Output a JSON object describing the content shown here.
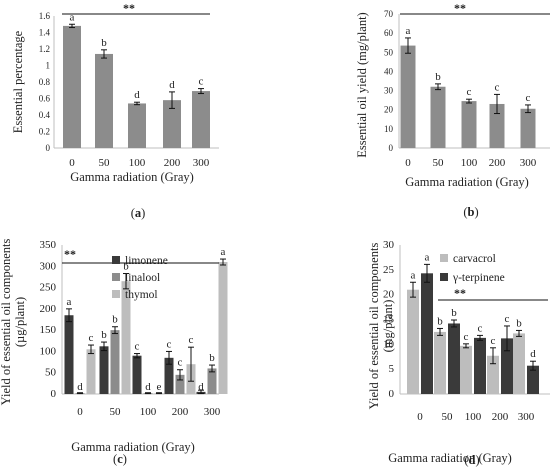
{
  "colors": {
    "gray": "#8c8c8c",
    "dark": "#3a3a3a",
    "light": "#bdbdbd",
    "axis": "#bfbfbf",
    "ink": "#222222"
  },
  "chart_data": [
    {
      "id": "a",
      "panel_label": "(a)",
      "panel_letter": "a",
      "type": "bar",
      "xlabel": "Gamma radiation (Gray)",
      "ylabel": "Essential percentage",
      "categories": [
        "0",
        "50",
        "100",
        "200",
        "300"
      ],
      "ylim": [
        0,
        1.6
      ],
      "yticks": [
        0,
        0.2,
        0.4,
        0.6,
        0.8,
        1.0,
        1.2,
        1.4,
        1.6
      ],
      "ytick_labels": [
        "0",
        "0.2",
        "0.4",
        "0.6",
        "0.8",
        "1",
        "1.2",
        "1.4",
        "1.6"
      ],
      "series": [
        {
          "color": "gray",
          "values": [
            1.48,
            1.14,
            0.54,
            0.58,
            0.69
          ],
          "errors": [
            0.02,
            0.05,
            0.015,
            0.1,
            0.03
          ],
          "letters": [
            "a",
            "b",
            "d",
            "d",
            "c"
          ]
        }
      ],
      "significance": "**"
    },
    {
      "id": "b",
      "panel_label": "(b)",
      "panel_letter": "b",
      "type": "bar",
      "xlabel": "Gamma radiation (Gray)",
      "ylabel": "Essential oil yield (mg/plant)",
      "categories": [
        "0",
        "50",
        "100",
        "200",
        "300"
      ],
      "ylim": [
        0,
        70
      ],
      "yticks": [
        0,
        10,
        20,
        30,
        40,
        50,
        60,
        70
      ],
      "ytick_labels": [
        "0",
        "10",
        "20",
        "30",
        "40",
        "50",
        "60",
        "70"
      ],
      "series": [
        {
          "color": "gray",
          "values": [
            53.5,
            32,
            24.5,
            23,
            20.5
          ],
          "errors": [
            4,
            1.5,
            1,
            5,
            2
          ],
          "letters": [
            "a",
            "b",
            "c",
            "c",
            "c"
          ]
        }
      ],
      "significance": "**"
    },
    {
      "id": "c",
      "panel_label": "(c)",
      "panel_letter": "c",
      "type": "bar",
      "xlabel": "Gamma radiation (Gray)",
      "ylabel": "Yield of essential oil components",
      "ylabel2": "(µg/plant)",
      "categories": [
        "0",
        "50",
        "100",
        "200",
        "300"
      ],
      "ylim": [
        0,
        350
      ],
      "yticks": [
        0,
        50,
        100,
        150,
        200,
        250,
        300,
        350
      ],
      "ytick_labels": [
        "0",
        "50",
        "100",
        "150",
        "200",
        "250",
        "300",
        "350"
      ],
      "series": [
        {
          "name": "limonene",
          "color": "dark",
          "values": [
            185,
            112,
            90,
            85,
            5
          ],
          "errors": [
            15,
            10,
            5,
            15,
            4
          ],
          "letters": [
            "a",
            "b",
            "c",
            "c",
            "d"
          ]
        },
        {
          "name": "linalool",
          "color": "gray",
          "values": [
            2,
            150,
            2,
            45,
            60
          ],
          "errors": [
            1,
            8,
            1,
            12,
            8
          ],
          "letters": [
            "d",
            "b",
            "d",
            "c",
            "b"
          ]
        },
        {
          "name": "thymol",
          "color": "light",
          "values": [
            105,
            265,
            2,
            70,
            310
          ],
          "errors": [
            10,
            18,
            1,
            40,
            7
          ],
          "letters": [
            "c",
            "b",
            "e",
            "c",
            "a"
          ]
        }
      ],
      "significance": "**"
    },
    {
      "id": "d",
      "panel_label": "(d)",
      "panel_letter": "d",
      "type": "bar",
      "xlabel": "Gamma radiation (Gray)",
      "ylabel": "Yield of essential oil  components",
      "ylabel2": "(mg/plant)",
      "categories": [
        "0",
        "50",
        "100",
        "200",
        "300"
      ],
      "ylim": [
        0,
        30
      ],
      "yticks": [
        0,
        5,
        10,
        15,
        20,
        25,
        30
      ],
      "ytick_labels": [
        "0",
        "5",
        "10",
        "15",
        "20",
        "25",
        "30"
      ],
      "series": [
        {
          "name": "carvacrol",
          "color": "light",
          "values": [
            21,
            12.5,
            9.7,
            7.7,
            12.2
          ],
          "errors": [
            1.5,
            0.7,
            0.4,
            1.6,
            0.6
          ],
          "letters": [
            "a",
            "b",
            "c",
            "c",
            "b"
          ]
        },
        {
          "name": "γ-terpinene",
          "color": "dark",
          "values": [
            24.3,
            14.2,
            11.3,
            11.2,
            5.7
          ],
          "errors": [
            1.8,
            0.7,
            0.5,
            2.5,
            0.9
          ],
          "letters": [
            "a",
            "b",
            "c",
            "c",
            "d"
          ]
        }
      ],
      "significance": "**"
    }
  ]
}
